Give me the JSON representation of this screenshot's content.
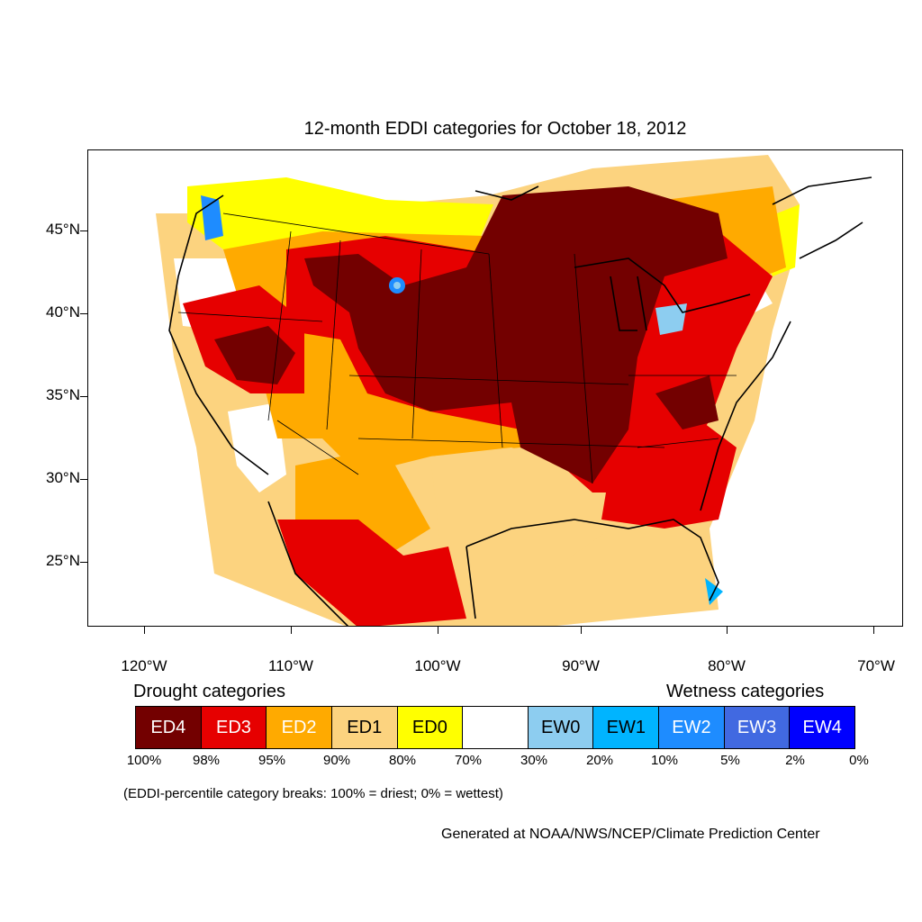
{
  "map": {
    "title": "12-month EDDI categories for October 18, 2012",
    "lat_labels": [
      "45°N",
      "40°N",
      "35°N",
      "30°N",
      "25°N"
    ],
    "lon_labels": [
      "120°W",
      "110°W",
      "100°W",
      "90°W",
      "80°W",
      "70°W"
    ]
  },
  "legend": {
    "drought_title": "Drought categories",
    "wetness_title": "Wetness categories",
    "categories": [
      {
        "label": "ED4",
        "color": "#730000",
        "text_color": "#ffffff"
      },
      {
        "label": "ED3",
        "color": "#e60000",
        "text_color": "#ffffff"
      },
      {
        "label": "ED2",
        "color": "#ffaa00",
        "text_color": "#ffffff"
      },
      {
        "label": "ED1",
        "color": "#fcd37f",
        "text_color": "#000000"
      },
      {
        "label": "ED0",
        "color": "#ffff00",
        "text_color": "#000000"
      },
      {
        "label": "",
        "color": "#ffffff",
        "text_color": "#000000"
      },
      {
        "label": "EW0",
        "color": "#8dcdf0",
        "text_color": "#000000"
      },
      {
        "label": "EW1",
        "color": "#00b4ff",
        "text_color": "#000000"
      },
      {
        "label": "EW2",
        "color": "#1e8cff",
        "text_color": "#ffffff"
      },
      {
        "label": "EW3",
        "color": "#4169e1",
        "text_color": "#ffffff"
      },
      {
        "label": "EW4",
        "color": "#0000ff",
        "text_color": "#ffffff"
      }
    ],
    "breaks": [
      "100%",
      "98%",
      "95%",
      "90%",
      "80%",
      "70%",
      "30%",
      "20%",
      "10%",
      "5%",
      "2%",
      "0%"
    ],
    "note": "(EDDI-percentile category breaks: 100% = driest; 0% = wettest)"
  },
  "credit": "Generated at NOAA/NWS/NCEP/Climate Prediction Center"
}
